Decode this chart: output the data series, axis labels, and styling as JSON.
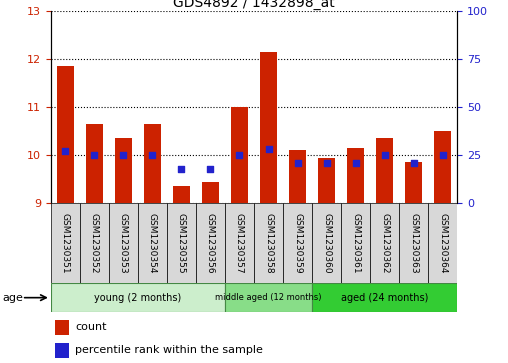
{
  "title": "GDS4892 / 1432898_at",
  "samples": [
    "GSM1230351",
    "GSM1230352",
    "GSM1230353",
    "GSM1230354",
    "GSM1230355",
    "GSM1230356",
    "GSM1230357",
    "GSM1230358",
    "GSM1230359",
    "GSM1230360",
    "GSM1230361",
    "GSM1230362",
    "GSM1230363",
    "GSM1230364"
  ],
  "count_values": [
    11.85,
    10.65,
    10.35,
    10.65,
    9.35,
    9.45,
    11.0,
    12.15,
    10.1,
    9.95,
    10.15,
    10.35,
    9.85,
    10.5
  ],
  "percentile_values": [
    27,
    25,
    25,
    25,
    18,
    18,
    25,
    28,
    21,
    21,
    21,
    25,
    21,
    25
  ],
  "count_base": 9.0,
  "ylim_left": [
    9,
    13
  ],
  "ylim_right": [
    0,
    100
  ],
  "yticks_left": [
    9,
    10,
    11,
    12,
    13
  ],
  "yticks_right": [
    0,
    25,
    50,
    75,
    100
  ],
  "bar_color": "#cc2200",
  "percentile_color": "#2222cc",
  "groups": [
    {
      "label": "young (2 months)",
      "start": 0,
      "end": 6,
      "color": "#cceecc"
    },
    {
      "label": "middle aged (12 months)",
      "start": 6,
      "end": 9,
      "color": "#88dd88"
    },
    {
      "label": "aged (24 months)",
      "start": 9,
      "end": 14,
      "color": "#33cc33"
    }
  ],
  "age_label": "age",
  "legend_count": "count",
  "legend_percentile": "percentile rank within the sample",
  "title_fontsize": 10,
  "tick_fontsize": 8,
  "label_fontsize": 6.5
}
